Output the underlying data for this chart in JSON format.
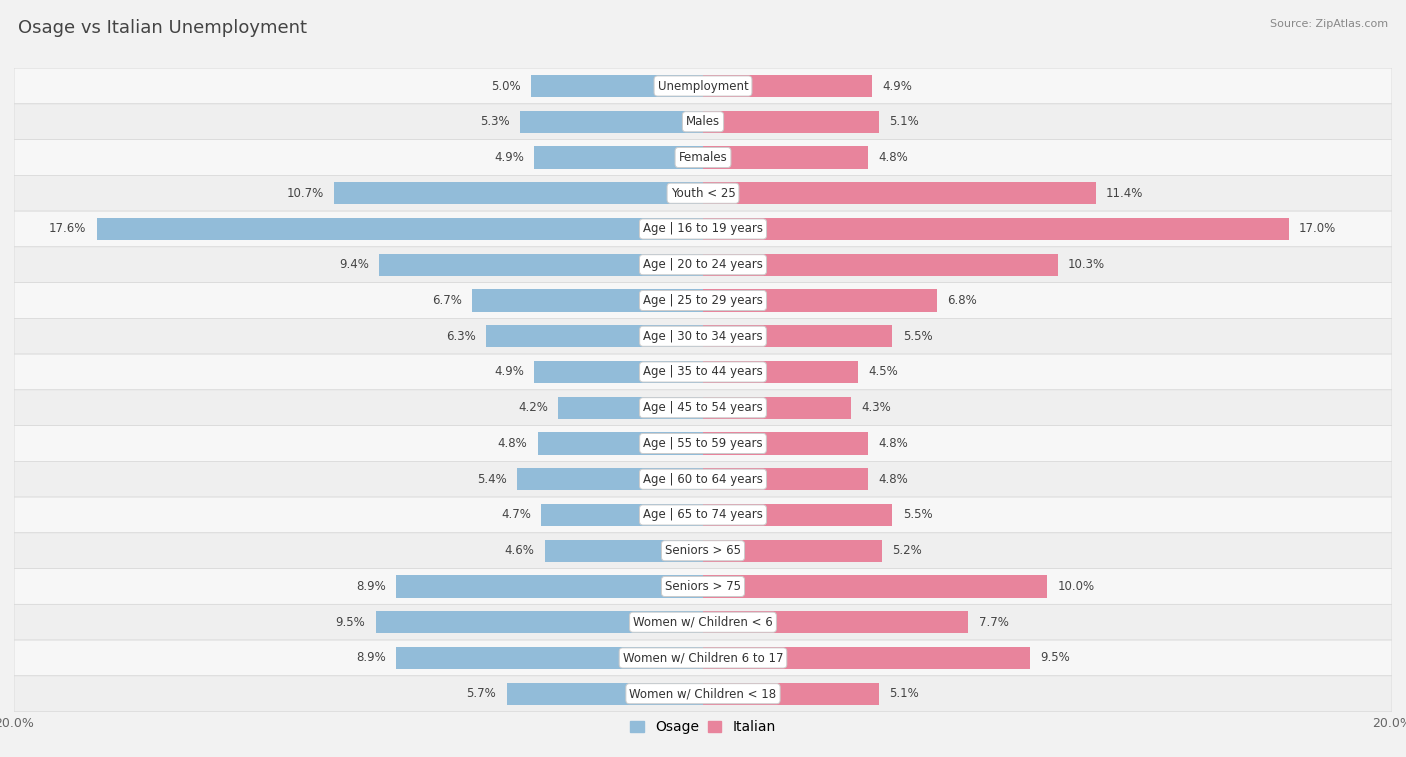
{
  "title": "Osage vs Italian Unemployment",
  "source": "Source: ZipAtlas.com",
  "categories": [
    "Unemployment",
    "Males",
    "Females",
    "Youth < 25",
    "Age | 16 to 19 years",
    "Age | 20 to 24 years",
    "Age | 25 to 29 years",
    "Age | 30 to 34 years",
    "Age | 35 to 44 years",
    "Age | 45 to 54 years",
    "Age | 55 to 59 years",
    "Age | 60 to 64 years",
    "Age | 65 to 74 years",
    "Seniors > 65",
    "Seniors > 75",
    "Women w/ Children < 6",
    "Women w/ Children 6 to 17",
    "Women w/ Children < 18"
  ],
  "osage": [
    5.0,
    5.3,
    4.9,
    10.7,
    17.6,
    9.4,
    6.7,
    6.3,
    4.9,
    4.2,
    4.8,
    5.4,
    4.7,
    4.6,
    8.9,
    9.5,
    8.9,
    5.7
  ],
  "italian": [
    4.9,
    5.1,
    4.8,
    11.4,
    17.0,
    10.3,
    6.8,
    5.5,
    4.5,
    4.3,
    4.8,
    4.8,
    5.5,
    5.2,
    10.0,
    7.7,
    9.5,
    5.1
  ],
  "osage_color": "#92bcd9",
  "italian_color": "#e8849c",
  "bar_height": 0.62,
  "xlim": 20.0,
  "row_color_even": "#f7f7f7",
  "row_color_odd": "#efefef",
  "label_fontsize": 8.5,
  "value_fontsize": 8.5,
  "title_fontsize": 13,
  "legend_fontsize": 10
}
